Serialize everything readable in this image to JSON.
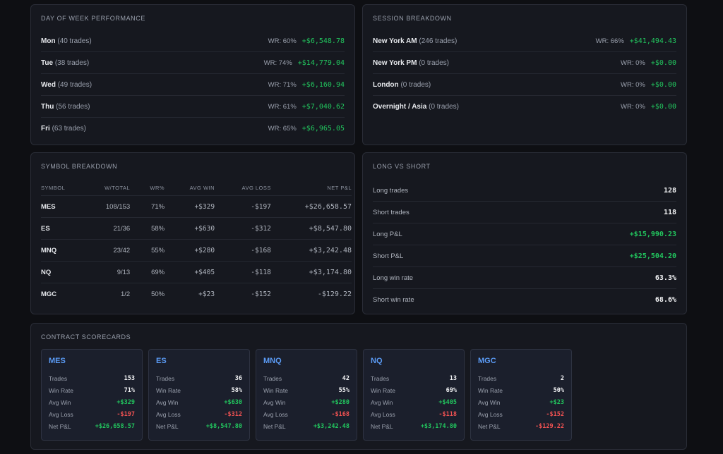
{
  "day_of_week": {
    "title": "DAY OF WEEK PERFORMANCE",
    "rows": [
      {
        "day": "Mon",
        "count": "(40 trades)",
        "wr": "WR: 60%",
        "pnl": "+$6,548.78"
      },
      {
        "day": "Tue",
        "count": "(38 trades)",
        "wr": "WR: 74%",
        "pnl": "+$14,779.04"
      },
      {
        "day": "Wed",
        "count": "(49 trades)",
        "wr": "WR: 71%",
        "pnl": "+$6,160.94"
      },
      {
        "day": "Thu",
        "count": "(56 trades)",
        "wr": "WR: 61%",
        "pnl": "+$7,040.62"
      },
      {
        "day": "Fri",
        "count": "(63 trades)",
        "wr": "WR: 65%",
        "pnl": "+$6,965.05"
      }
    ]
  },
  "session": {
    "title": "SESSION BREAKDOWN",
    "rows": [
      {
        "name": "New York AM",
        "count": "(246 trades)",
        "wr": "WR: 66%",
        "pnl": "+$41,494.43"
      },
      {
        "name": "New York PM",
        "count": "(0 trades)",
        "wr": "WR: 0%",
        "pnl": "+$0.00"
      },
      {
        "name": "London",
        "count": "(0 trades)",
        "wr": "WR: 0%",
        "pnl": "+$0.00"
      },
      {
        "name": "Overnight / Asia",
        "count": "(0 trades)",
        "wr": "WR: 0%",
        "pnl": "+$0.00"
      }
    ]
  },
  "symbols": {
    "title": "SYMBOL BREAKDOWN",
    "headers": [
      "SYMBOL",
      "W/TOTAL",
      "WR%",
      "AVG WIN",
      "AVG LOSS",
      "NET P&L"
    ],
    "rows": [
      {
        "symbol": "MES",
        "wt": "108/153",
        "wr": "71%",
        "avg_win": "+$329",
        "avg_loss": "-$197",
        "net": "+$26,658.57",
        "net_positive": true
      },
      {
        "symbol": "ES",
        "wt": "21/36",
        "wr": "58%",
        "avg_win": "+$630",
        "avg_loss": "-$312",
        "net": "+$8,547.80",
        "net_positive": true
      },
      {
        "symbol": "MNQ",
        "wt": "23/42",
        "wr": "55%",
        "avg_win": "+$280",
        "avg_loss": "-$168",
        "net": "+$3,242.48",
        "net_positive": true
      },
      {
        "symbol": "NQ",
        "wt": "9/13",
        "wr": "69%",
        "avg_win": "+$405",
        "avg_loss": "-$118",
        "net": "+$3,174.80",
        "net_positive": true
      },
      {
        "symbol": "MGC",
        "wt": "1/2",
        "wr": "50%",
        "avg_win": "+$23",
        "avg_loss": "-$152",
        "net": "-$129.22",
        "net_positive": false
      }
    ]
  },
  "long_short": {
    "title": "LONG VS SHORT",
    "rows": [
      {
        "label": "Long trades",
        "value": "128",
        "tone": "white"
      },
      {
        "label": "Short trades",
        "value": "118",
        "tone": "white"
      },
      {
        "label": "Long P&L",
        "value": "+$15,990.23",
        "tone": "green"
      },
      {
        "label": "Short P&L",
        "value": "+$25,504.20",
        "tone": "green"
      },
      {
        "label": "Long win rate",
        "value": "63.3%",
        "tone": "white"
      },
      {
        "label": "Short win rate",
        "value": "68.6%",
        "tone": "white"
      }
    ]
  },
  "scorecards": {
    "title": "CONTRACT SCORECARDS",
    "labels": {
      "trades": "Trades",
      "win_rate": "Win Rate",
      "avg_win": "Avg Win",
      "avg_loss": "Avg Loss",
      "net": "Net P&L"
    },
    "cards": [
      {
        "symbol": "MES",
        "trades": "153",
        "win_rate": "71%",
        "avg_win": "+$329",
        "avg_loss": "-$197",
        "net": "+$26,658.57",
        "net_positive": true
      },
      {
        "symbol": "ES",
        "trades": "36",
        "win_rate": "58%",
        "avg_win": "+$630",
        "avg_loss": "-$312",
        "net": "+$8,547.80",
        "net_positive": true
      },
      {
        "symbol": "MNQ",
        "trades": "42",
        "win_rate": "55%",
        "avg_win": "+$280",
        "avg_loss": "-$168",
        "net": "+$3,242.48",
        "net_positive": true
      },
      {
        "symbol": "NQ",
        "trades": "13",
        "win_rate": "69%",
        "avg_win": "+$405",
        "avg_loss": "-$118",
        "net": "+$3,174.80",
        "net_positive": true
      },
      {
        "symbol": "MGC",
        "trades": "2",
        "win_rate": "50%",
        "avg_win": "+$23",
        "avg_loss": "-$152",
        "net": "-$129.22",
        "net_positive": false
      }
    ]
  },
  "colors": {
    "positive": "#22c55e",
    "negative": "#f05252",
    "accent": "#5b9bf5",
    "panel": "#16181f",
    "background": "#0e0f13"
  }
}
